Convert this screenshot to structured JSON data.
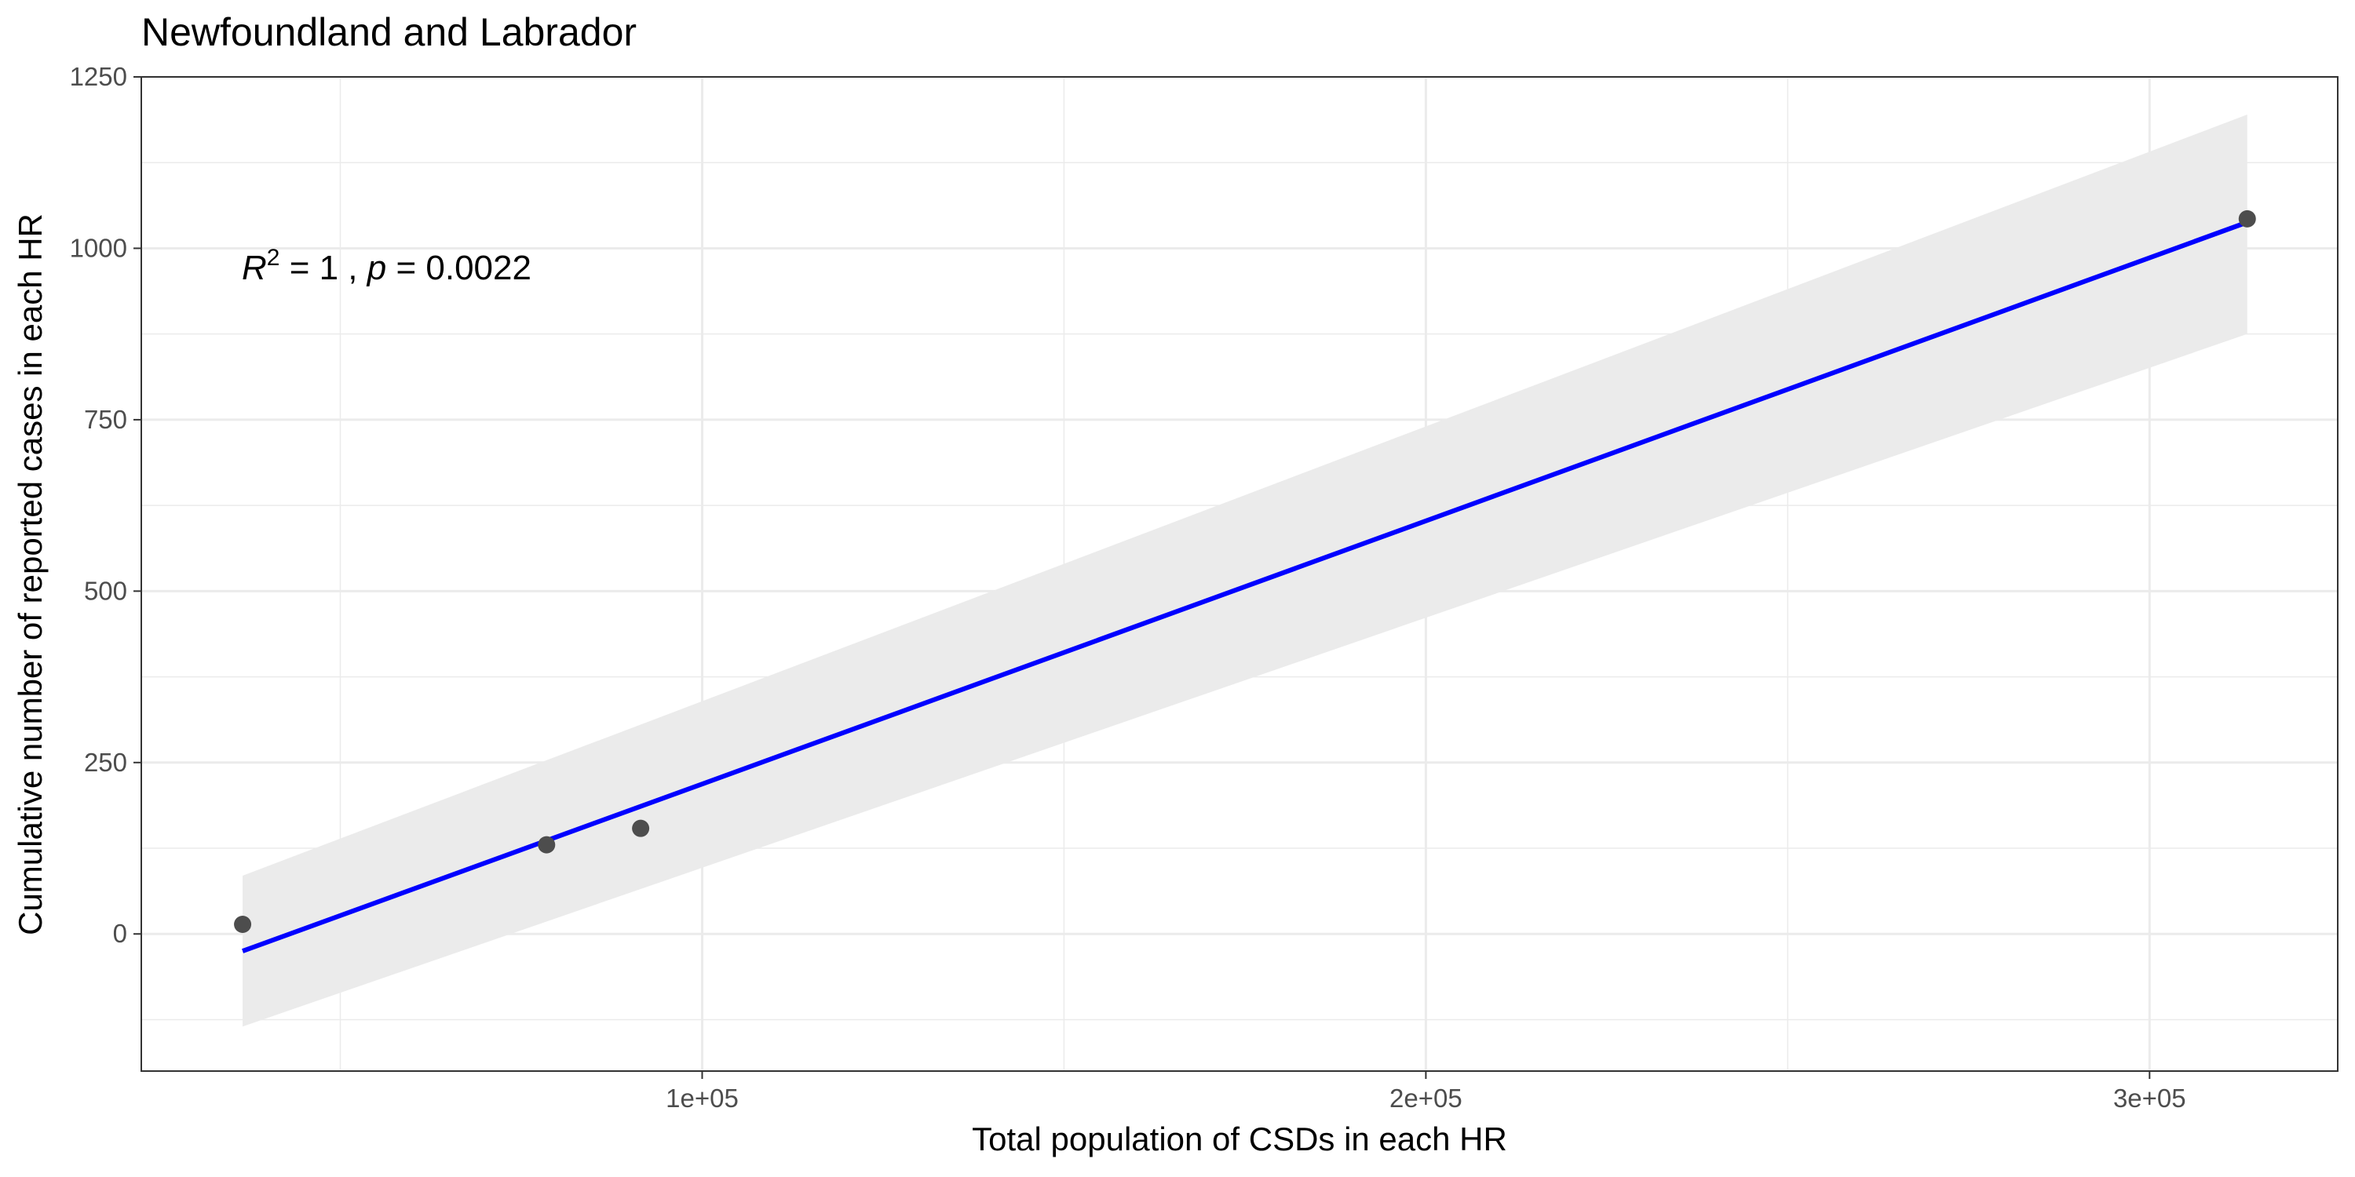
{
  "chart_data": {
    "type": "scatter",
    "title": "Newfoundland and Labrador",
    "xlabel": "Total population of CSDs in each HR",
    "ylabel": "Cumulative number of reported cases in each HR",
    "xlim": [
      22500,
      326000
    ],
    "ylim": [
      -200,
      1250
    ],
    "x_ticks": [
      100000,
      200000,
      300000
    ],
    "x_tick_labels": [
      "1e+05",
      "2e+05",
      "3e+05"
    ],
    "x_minor_ticks": [
      50000,
      150000,
      250000
    ],
    "y_ticks": [
      0,
      250,
      500,
      750,
      1000,
      1250
    ],
    "y_tick_labels": [
      "0",
      "250",
      "500",
      "750",
      "1000",
      "1250"
    ],
    "y_minor_ticks": [
      -125,
      125,
      375,
      625,
      875,
      1125
    ],
    "grid": true,
    "points": [
      {
        "x": 36500,
        "y": 14
      },
      {
        "x": 78500,
        "y": 130
      },
      {
        "x": 91500,
        "y": 154
      },
      {
        "x": 313500,
        "y": 1043
      }
    ],
    "fit_line": {
      "x": [
        36500,
        313500
      ],
      "y": [
        -25,
        1038
      ],
      "color": "#0000ff"
    },
    "confidence_band": {
      "x": [
        36500,
        313500
      ],
      "lower": [
        -135,
        875
      ],
      "upper": [
        85,
        1195
      ],
      "color": "#ebebeb"
    },
    "annotation": {
      "r_label": "R",
      "r_exp": "2",
      "r_value": " = 1 , ",
      "p_label": "p",
      "p_value": " = 0.0022"
    },
    "point_color": "#4d4d4d"
  }
}
